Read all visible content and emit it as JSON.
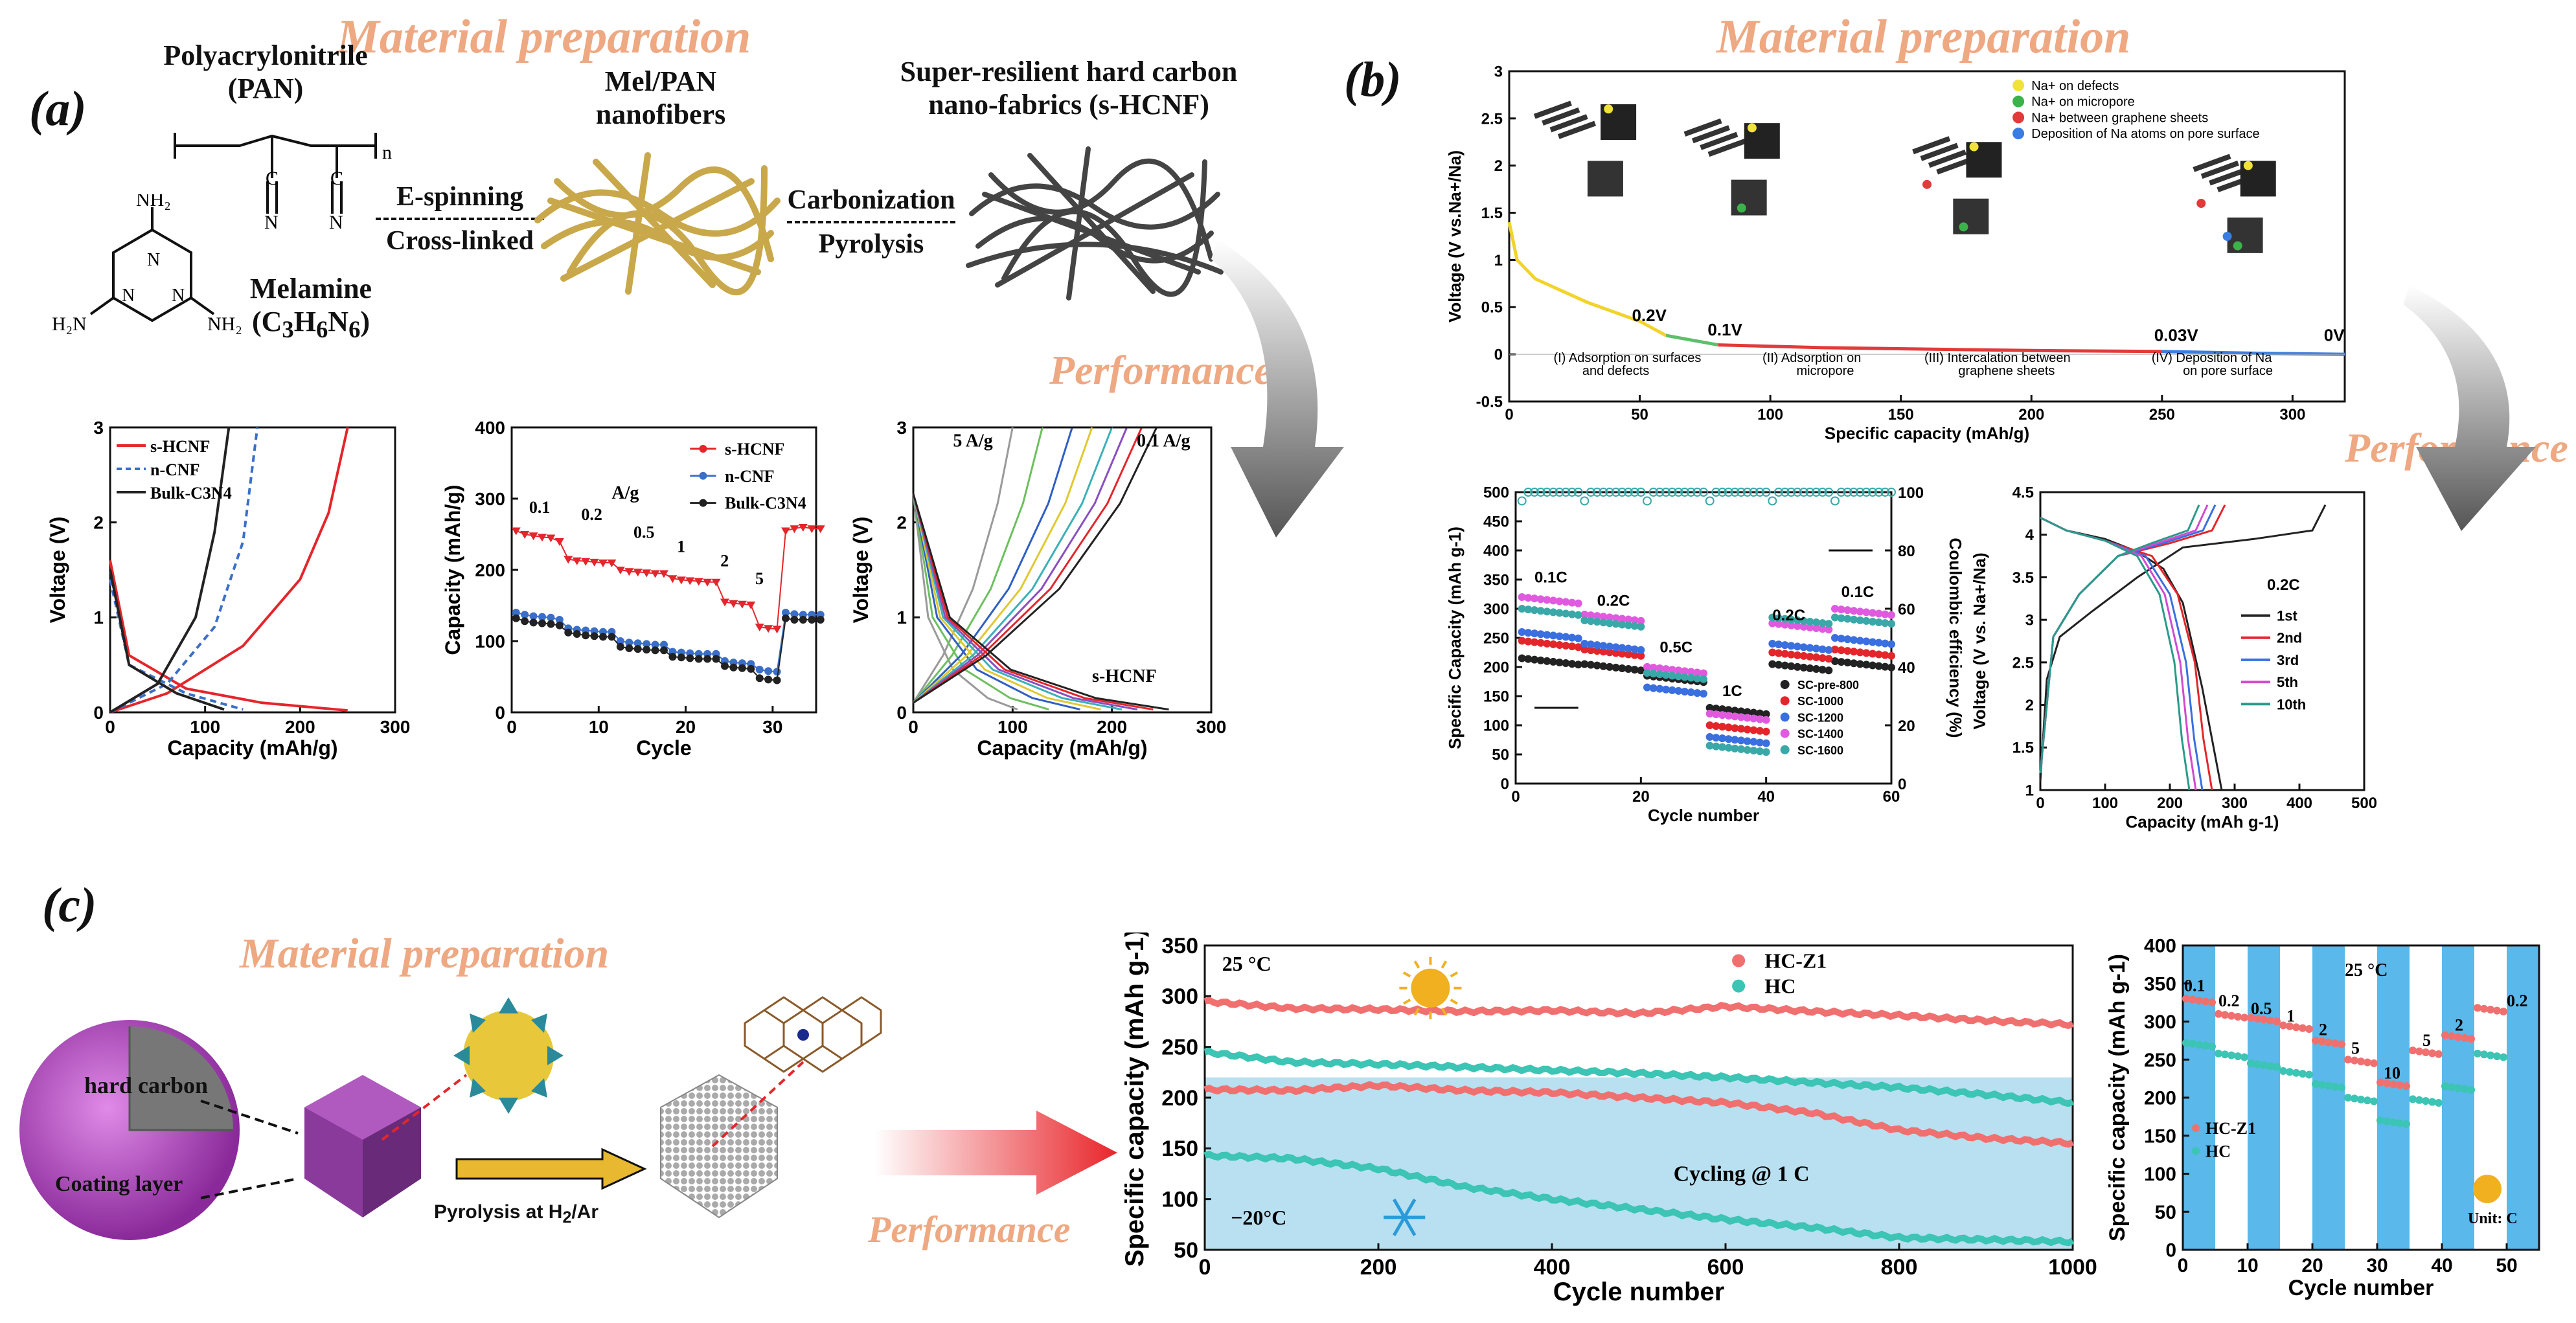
{
  "panel_a": {
    "letter": "(a)",
    "material_title": "Material preparation",
    "performance_title": "Performance",
    "pan_label": "Polyacrylonitrile",
    "pan_abbr": "(PAN)",
    "melamine_label": "Melamine",
    "melamine_formula": "(C3H6N6)",
    "espin_1": "E-spinning",
    "espin_2": "Cross-linked",
    "melpan_1": "Mel/PAN",
    "melpan_2": "nanofibers",
    "carb_1": "Carbonization",
    "carb_2": "Pyrolysis",
    "hcnf_1": "Super-resilient hard carbon",
    "hcnf_2": "nano-fabrics (s-HCNF)"
  },
  "panel_b": {
    "letter": "(b)",
    "material_title": "Material preparation",
    "performance_title": "Performance"
  },
  "panel_c": {
    "letter": "(c)",
    "material_title": "Material preparation",
    "performance_title": "Performance",
    "hard_carbon": "hard carbon",
    "coating_layer": "Coating layer",
    "pyrolysis": "Pyrolysis at H2/Ar"
  },
  "chart_data": [
    {
      "id": "a1",
      "type": "line",
      "xlabel": "Capacity (mAh/g)",
      "ylabel": "Voltage (V)",
      "xlim": [
        0,
        300
      ],
      "ylim": [
        0,
        3
      ],
      "xticks": [
        0,
        100,
        200,
        300
      ],
      "yticks": [
        0,
        1,
        2,
        3
      ],
      "legend": [
        "s-HCNF",
        "n-CNF",
        "Bulk-C3N4"
      ],
      "series": [
        {
          "name": "s-HCNF",
          "color": "#e3262b",
          "points": [
            [
              0,
              1.6
            ],
            [
              20,
              0.6
            ],
            [
              80,
              0.25
            ],
            [
              160,
              0.1
            ],
            [
              250,
              0.02
            ]
          ]
        },
        {
          "name": "s-HCNF",
          "color": "#e3262b",
          "points": [
            [
              0,
              0
            ],
            [
              60,
              0.2
            ],
            [
              140,
              0.7
            ],
            [
              200,
              1.4
            ],
            [
              230,
              2.1
            ],
            [
              250,
              3
            ]
          ]
        },
        {
          "name": "n-CNF",
          "color": "#3a6fc9",
          "dash": true,
          "points": [
            [
              0,
              1.4
            ],
            [
              20,
              0.5
            ],
            [
              80,
              0.2
            ],
            [
              140,
              0.03
            ]
          ]
        },
        {
          "name": "n-CNF",
          "color": "#3a6fc9",
          "dash": true,
          "points": [
            [
              0,
              0
            ],
            [
              60,
              0.3
            ],
            [
              110,
              0.9
            ],
            [
              140,
              1.8
            ],
            [
              155,
              3
            ]
          ]
        },
        {
          "name": "Bulk-C3N4",
          "color": "#222222",
          "points": [
            [
              0,
              1.5
            ],
            [
              20,
              0.5
            ],
            [
              70,
              0.2
            ],
            [
              120,
              0.03
            ]
          ]
        },
        {
          "name": "Bulk-C3N4",
          "color": "#222222",
          "points": [
            [
              0,
              0
            ],
            [
              50,
              0.3
            ],
            [
              90,
              1.0
            ],
            [
              110,
              1.9
            ],
            [
              125,
              3
            ]
          ]
        }
      ]
    },
    {
      "id": "a2",
      "type": "scatter",
      "xlabel": "Cycle",
      "ylabel": "Capacity (mAh/g)",
      "xlim": [
        0,
        35
      ],
      "ylim": [
        0,
        400
      ],
      "xticks": [
        0,
        10,
        20,
        30
      ],
      "yticks": [
        0,
        100,
        200,
        300,
        400
      ],
      "rate_labels": [
        "0.1",
        "0.2",
        "0.5",
        "1",
        "2",
        "5"
      ],
      "unit_label": "A/g",
      "series": [
        {
          "name": "s-HCNF",
          "color": "#e3262b",
          "values": [
            255,
            250,
            248,
            246,
            245,
            240,
            215,
            213,
            212,
            211,
            210,
            210,
            200,
            198,
            197,
            196,
            195,
            195,
            188,
            186,
            185,
            184,
            183,
            183,
            155,
            153,
            152,
            151,
            120,
            118,
            117,
            255,
            258,
            260,
            258,
            258
          ]
        },
        {
          "name": "n-CNF",
          "color": "#3a6fc9",
          "values": [
            140,
            137,
            135,
            134,
            133,
            130,
            118,
            116,
            115,
            114,
            113,
            113,
            100,
            98,
            97,
            96,
            95,
            95,
            85,
            84,
            83,
            82,
            82,
            82,
            72,
            70,
            69,
            68,
            60,
            58,
            57,
            140,
            138,
            137,
            137,
            137
          ]
        },
        {
          "name": "Bulk-C3N4",
          "color": "#222222",
          "values": [
            132,
            128,
            126,
            125,
            124,
            122,
            112,
            110,
            108,
            107,
            106,
            106,
            92,
            90,
            89,
            88,
            87,
            87,
            78,
            77,
            76,
            75,
            75,
            75,
            65,
            63,
            62,
            61,
            48,
            46,
            45,
            132,
            130,
            130,
            130,
            130
          ]
        }
      ]
    },
    {
      "id": "a3",
      "type": "line",
      "xlabel": "Capacity (mAh/g)",
      "ylabel": "Voltage (V)",
      "xlim": [
        0,
        300
      ],
      "ylim": [
        0,
        3
      ],
      "xticks": [
        0,
        100,
        200,
        300
      ],
      "yticks": [
        0,
        1,
        2,
        3
      ],
      "annotations": [
        "5 A/g",
        "0.1 A/g",
        "s-HCNF"
      ],
      "charge_ends": [
        100,
        130,
        160,
        180,
        200,
        215,
        230,
        245
      ],
      "colors": [
        "#9a9a9a",
        "#6dbf5f",
        "#2f5fc4",
        "#e0c830",
        "#3bb0b8",
        "#8a4fc0",
        "#e3262b",
        "#222222"
      ]
    },
    {
      "id": "b1",
      "type": "line",
      "xlabel": "Specific capacity (mAh/g)",
      "ylabel": "Voltage (V vs.Na+/Na)",
      "xlim": [
        0,
        320
      ],
      "ylim": [
        -0.5,
        3.0
      ],
      "xticks": [
        0,
        50,
        100,
        150,
        200,
        250,
        300
      ],
      "yticks": [
        -0.5,
        0.0,
        0.5,
        1.0,
        1.5,
        2.0,
        2.5,
        3.0
      ],
      "legend": [
        "Na+ on defects",
        "Na+ on micropore",
        "Na+ between graphene sheets",
        "Deposition of Na atoms on pore surface"
      ],
      "legend_colors": [
        "#f0e23a",
        "#3cb34a",
        "#e23a3a",
        "#3a7de0"
      ],
      "voltage_marks": [
        "0.2V",
        "0.1V",
        "0.03V",
        "0V"
      ],
      "stages": [
        "(I)  Adsorption on surfaces",
        "and defects",
        "(II) Adsorption on",
        "micropore",
        "(III) Intercalation between",
        "graphene sheets",
        "(IV) Deposition of Na",
        "on pore surface"
      ]
    },
    {
      "id": "b2",
      "type": "scatter",
      "xlabel": "Cycle number",
      "ylabel": "Specific Capacity (mAh g-1)",
      "y2label": "Coulombic efficiency (%)",
      "xlim": [
        0,
        60
      ],
      "ylim": [
        0,
        500
      ],
      "y2lim": [
        0,
        100
      ],
      "xticks": [
        0,
        20,
        40,
        60
      ],
      "yticks": [
        0,
        50,
        100,
        150,
        200,
        250,
        300,
        350,
        400,
        450,
        500
      ],
      "y2ticks": [
        0,
        20,
        40,
        60,
        80,
        100
      ],
      "rate_labels": [
        "0.1C",
        "0.2C",
        "0.5C",
        "1C",
        "0.2C",
        "0.1C"
      ],
      "legend": [
        "SC-pre-800",
        "SC-1000",
        "SC-1200",
        "SC-1400",
        "SC-1600"
      ],
      "series": [
        {
          "name": "SC-pre-800",
          "color": "#222222",
          "levels": [
            215,
            205,
            185,
            130,
            205,
            210
          ]
        },
        {
          "name": "SC-1000",
          "color": "#e3262b",
          "levels": [
            245,
            230,
            200,
            100,
            225,
            230
          ]
        },
        {
          "name": "SC-1200",
          "color": "#3a6fe0",
          "levels": [
            260,
            240,
            165,
            80,
            240,
            250
          ]
        },
        {
          "name": "SC-1400",
          "color": "#e05ae0",
          "levels": [
            320,
            290,
            200,
            120,
            275,
            300
          ]
        },
        {
          "name": "SC-1600",
          "color": "#3aa8a8",
          "levels": [
            300,
            280,
            190,
            65,
            285,
            285
          ]
        }
      ],
      "ce": 100
    },
    {
      "id": "b3",
      "type": "line",
      "xlabel": "Capacity (mAh g-1)",
      "ylabel": "Voltage (V vs. Na+/Na)",
      "xlim": [
        0,
        500
      ],
      "ylim": [
        1,
        4.5
      ],
      "xticks": [
        0,
        100,
        200,
        300,
        400,
        500
      ],
      "yticks": [
        1,
        1.5,
        2,
        2.5,
        3,
        3.5,
        4,
        4.5
      ],
      "title_inline": "0.2C",
      "legend": [
        "1st",
        "2nd",
        "3rd",
        "5th",
        "10th"
      ],
      "colors": [
        "#222222",
        "#e3262b",
        "#3a6fe0",
        "#d04ad0",
        "#2a9a8a"
      ],
      "discharge_end": [
        280,
        265,
        250,
        240,
        230
      ],
      "charge_end": [
        440,
        285,
        270,
        258,
        245
      ]
    },
    {
      "id": "c1",
      "type": "scatter",
      "xlabel": "Cycle number",
      "ylabel": "Specific capacity (mAh g-1)",
      "xlim": [
        0,
        1000
      ],
      "ylim": [
        50,
        350
      ],
      "xticks": [
        0,
        200,
        400,
        600,
        800,
        1000
      ],
      "yticks": [
        50,
        100,
        150,
        200,
        250,
        300,
        350
      ],
      "legend": [
        "HC-Z1",
        "HC"
      ],
      "annotations": [
        "25 °C",
        "−20°C",
        "Cycling @ 1 C"
      ],
      "series": [
        {
          "name": "HC-Z1 (25 °C)",
          "color": "#f07070",
          "x": [
            0,
            100,
            200,
            300,
            400,
            500,
            600,
            700,
            800,
            900,
            1000
          ],
          "y": [
            295,
            288,
            287,
            285,
            286,
            283,
            290,
            285,
            281,
            276,
            272
          ]
        },
        {
          "name": "HC (25 °C)",
          "color": "#3cc4b4",
          "x": [
            0,
            100,
            200,
            300,
            400,
            500,
            600,
            700,
            800,
            900,
            1000
          ],
          "y": [
            245,
            235,
            233,
            230,
            227,
            224,
            220,
            215,
            210,
            203,
            195
          ]
        },
        {
          "name": "HC-Z1 (−20°C)",
          "color": "#f07070",
          "x": [
            0,
            100,
            200,
            300,
            400,
            500,
            600,
            700,
            800,
            900,
            1000
          ],
          "y": [
            208,
            207,
            212,
            207,
            205,
            200,
            195,
            185,
            168,
            160,
            155
          ]
        },
        {
          "name": "HC (−20°C)",
          "color": "#3cc4b4",
          "x": [
            0,
            100,
            200,
            300,
            400,
            500,
            600,
            700,
            800,
            900,
            1000
          ],
          "y": [
            143,
            140,
            130,
            112,
            100,
            90,
            80,
            72,
            62,
            60,
            58
          ]
        }
      ]
    },
    {
      "id": "c2",
      "type": "scatter",
      "xlabel": "Cycle number",
      "ylabel": "Specific capacity (mAh g-1)",
      "xlim": [
        0,
        55
      ],
      "ylim": [
        0,
        400
      ],
      "xticks": [
        0,
        10,
        20,
        30,
        40,
        50
      ],
      "yticks": [
        0,
        50,
        100,
        150,
        200,
        250,
        300,
        350,
        400
      ],
      "legend": [
        "HC-Z1",
        "HC"
      ],
      "annotations": [
        "25 °C",
        "Unit: C"
      ],
      "rate_labels": [
        "0.1",
        "0.2",
        "0.5",
        "1",
        "2",
        "5",
        "10",
        "5",
        "2",
        "0.2"
      ],
      "series": [
        {
          "name": "HC-Z1",
          "color": "#f07070",
          "levels": [
            330,
            310,
            305,
            295,
            275,
            250,
            220,
            262,
            282,
            318
          ]
        },
        {
          "name": "HC",
          "color": "#3cc4b4",
          "levels": [
            272,
            258,
            245,
            235,
            218,
            200,
            170,
            198,
            215,
            258
          ]
        }
      ]
    }
  ]
}
